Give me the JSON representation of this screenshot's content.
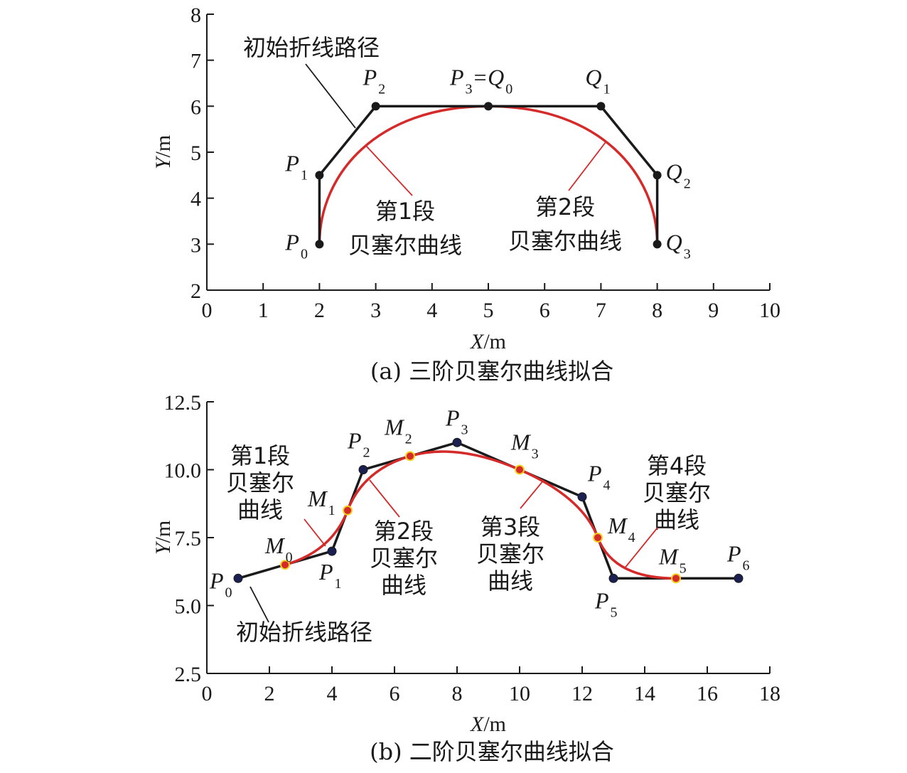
{
  "chart_data": [
    {
      "type": "line",
      "caption": "(a) 三阶贝塞尔曲线拟合",
      "xlabel": "X/m",
      "ylabel": "Y/m",
      "xlim": [
        0,
        10
      ],
      "ylim": [
        2,
        8
      ],
      "xticks": [
        0,
        1,
        2,
        3,
        4,
        5,
        6,
        7,
        8,
        9,
        10
      ],
      "yticks": [
        2,
        3,
        4,
        5,
        6,
        7,
        8
      ],
      "line_color": "#1a1a1a",
      "curve_color": "#d42a2a",
      "polyline": [
        [
          2,
          3
        ],
        [
          2,
          4.5
        ],
        [
          3,
          6
        ],
        [
          5,
          6
        ],
        [
          7,
          6
        ],
        [
          8,
          4.5
        ],
        [
          8,
          3
        ]
      ],
      "bezier_segments": [
        [
          [
            2,
            3
          ],
          [
            2,
            4.5
          ],
          [
            3,
            6
          ],
          [
            5,
            6
          ]
        ],
        [
          [
            5,
            6
          ],
          [
            7,
            6
          ],
          [
            8,
            4.5
          ],
          [
            8,
            3
          ]
        ]
      ],
      "points": [
        {
          "main": "P",
          "sub": "0",
          "x": 2,
          "y": 3
        },
        {
          "main": "P",
          "sub": "1",
          "x": 2,
          "y": 4.5
        },
        {
          "main": "P",
          "sub": "2",
          "x": 3,
          "y": 6
        },
        {
          "main": "P",
          "sub": "3",
          "extra_main": "=Q",
          "extra_sub": "0",
          "x": 5,
          "y": 6
        },
        {
          "main": "Q",
          "sub": "1",
          "x": 7,
          "y": 6
        },
        {
          "main": "Q",
          "sub": "2",
          "x": 8,
          "y": 4.5
        },
        {
          "main": "Q",
          "sub": "3",
          "x": 8,
          "y": 3
        }
      ],
      "annotations": [
        {
          "lines": [
            "初始折线路径"
          ],
          "x": 2.7,
          "y": 5.5
        },
        {
          "lines": [
            "第1段",
            "贝塞尔曲线"
          ],
          "x": 2.9,
          "y": 5.2
        },
        {
          "lines": [
            "第2段",
            "贝塞尔曲线"
          ],
          "x": 7.05,
          "y": 5.2
        }
      ]
    },
    {
      "type": "line",
      "caption": "(b) 二阶贝塞尔曲线拟合",
      "xlabel": "X/m",
      "ylabel": "Y/m",
      "xlim": [
        0,
        18
      ],
      "ylim": [
        2.5,
        12.5
      ],
      "xticks": [
        0,
        2,
        4,
        6,
        8,
        10,
        12,
        14,
        16,
        18
      ],
      "yticks": [
        2.5,
        5.0,
        7.5,
        10.0,
        12.5
      ],
      "ytick_labels": [
        "2.5",
        "5.0",
        "7.5",
        "10.0",
        "12.5"
      ],
      "line_color": "#1a1a1a",
      "curve_color": "#d42a2a",
      "p_point_fill": "#1a2050",
      "m_point_fill": "#d42a2a",
      "m_point_stroke": "#f5d020",
      "polyline": [
        [
          1,
          6
        ],
        [
          4,
          7
        ],
        [
          5,
          10
        ],
        [
          8,
          11
        ],
        [
          12,
          9
        ],
        [
          13,
          6
        ],
        [
          17,
          6
        ]
      ],
      "bezier_segments": [
        [
          [
            2.5,
            6.5
          ],
          [
            4,
            7
          ],
          [
            4.5,
            8.5
          ]
        ],
        [
          [
            4.5,
            8.5
          ],
          [
            5,
            10
          ],
          [
            6.5,
            10.5
          ]
        ],
        [
          [
            6.5,
            10.5
          ],
          [
            8,
            11
          ],
          [
            10,
            10
          ]
        ],
        [
          [
            10,
            10
          ],
          [
            12,
            9
          ],
          [
            12.5,
            7.5
          ]
        ],
        [
          [
            12.5,
            7.5
          ],
          [
            13,
            6
          ],
          [
            15,
            6
          ]
        ]
      ],
      "p_points": [
        {
          "main": "P",
          "sub": "0",
          "x": 1,
          "y": 6
        },
        {
          "main": "P",
          "sub": "1",
          "x": 4,
          "y": 7
        },
        {
          "main": "P",
          "sub": "2",
          "x": 5,
          "y": 10
        },
        {
          "main": "P",
          "sub": "3",
          "x": 8,
          "y": 11
        },
        {
          "main": "P",
          "sub": "4",
          "x": 12,
          "y": 9
        },
        {
          "main": "P",
          "sub": "5",
          "x": 13,
          "y": 6
        },
        {
          "main": "P",
          "sub": "6",
          "x": 17,
          "y": 6
        }
      ],
      "m_points": [
        {
          "main": "M",
          "sub": "0",
          "x": 2.5,
          "y": 6.5
        },
        {
          "main": "M",
          "sub": "1",
          "x": 4.5,
          "y": 8.5
        },
        {
          "main": "M",
          "sub": "2",
          "x": 6.5,
          "y": 10.5
        },
        {
          "main": "M",
          "sub": "3",
          "x": 10,
          "y": 10
        },
        {
          "main": "M",
          "sub": "4",
          "x": 12.5,
          "y": 7.5
        },
        {
          "main": "M",
          "sub": "5",
          "x": 15,
          "y": 6
        }
      ],
      "annotations": [
        {
          "lines": [
            "第1段",
            "贝塞尔",
            "曲线"
          ]
        },
        {
          "lines": [
            "第2段",
            "贝塞尔",
            "曲线"
          ]
        },
        {
          "lines": [
            "第3段",
            "贝塞尔",
            "曲线"
          ]
        },
        {
          "lines": [
            "第4段",
            "贝塞尔",
            "曲线"
          ]
        },
        {
          "lines": [
            "初始折线路径"
          ]
        }
      ]
    }
  ]
}
